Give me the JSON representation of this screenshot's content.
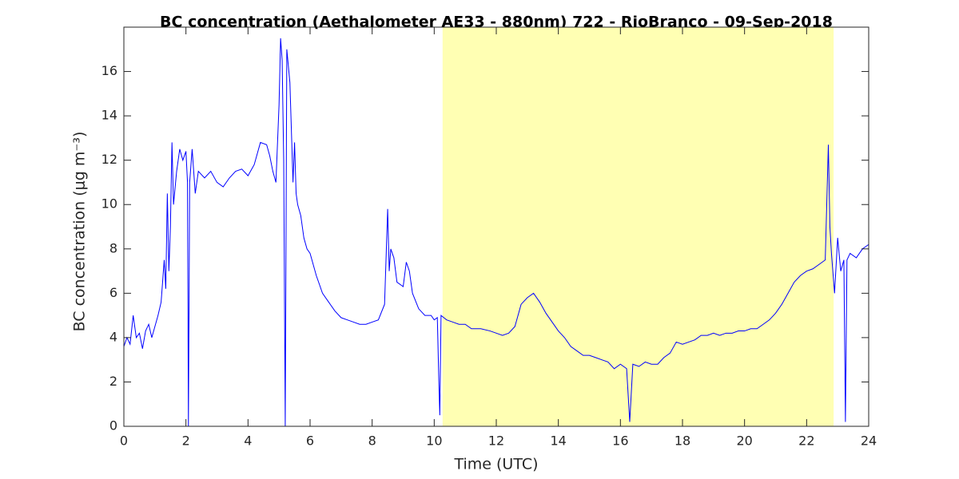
{
  "chart_data": {
    "type": "line",
    "title": "BC concentration (Aethalometer AE33 - 880nm) 722 - RioBranco - 09-Sep-2018",
    "xlabel": "Time (UTC)",
    "ylabel": "BC concentration (μg m⁻³)",
    "xlim": [
      0,
      24
    ],
    "xticks": [
      0,
      2,
      4,
      6,
      8,
      10,
      12,
      14,
      16,
      18,
      20,
      22,
      24
    ],
    "ylim": [
      0,
      18
    ],
    "yticks": [
      0,
      2,
      4,
      6,
      8,
      10,
      12,
      14,
      16
    ],
    "shaded_region": [
      10.27,
      22.87
    ],
    "shade_color": "#ffffb3",
    "series": [
      {
        "color": "#0000ff",
        "x": [
          0,
          0.1,
          0.2,
          0.3,
          0.4,
          0.5,
          0.6,
          0.7,
          0.8,
          0.9,
          1.0,
          1.1,
          1.2,
          1.3,
          1.35,
          1.4,
          1.45,
          1.5,
          1.55,
          1.6,
          1.7,
          1.8,
          1.9,
          2.0,
          2.05,
          2.08,
          2.12,
          2.2,
          2.3,
          2.4,
          2.6,
          2.8,
          3.0,
          3.2,
          3.4,
          3.6,
          3.8,
          4.0,
          4.2,
          4.4,
          4.6,
          4.7,
          4.8,
          4.9,
          5.0,
          5.05,
          5.1,
          5.15,
          5.2,
          5.25,
          5.35,
          5.45,
          5.5,
          5.55,
          5.6,
          5.7,
          5.8,
          5.9,
          6.0,
          6.2,
          6.4,
          6.6,
          6.8,
          7.0,
          7.2,
          7.4,
          7.6,
          7.8,
          8.0,
          8.2,
          8.4,
          8.5,
          8.55,
          8.6,
          8.7,
          8.8,
          9.0,
          9.1,
          9.2,
          9.3,
          9.5,
          9.7,
          9.9,
          10.0,
          10.1,
          10.15,
          10.18,
          10.22,
          10.4,
          10.6,
          10.8,
          11.0,
          11.2,
          11.5,
          11.8,
          12.0,
          12.2,
          12.4,
          12.6,
          12.8,
          13.0,
          13.2,
          13.4,
          13.6,
          13.8,
          14.0,
          14.2,
          14.4,
          14.6,
          14.8,
          15.0,
          15.2,
          15.4,
          15.6,
          15.8,
          16.0,
          16.2,
          16.3,
          16.4,
          16.6,
          16.8,
          17.0,
          17.2,
          17.4,
          17.6,
          17.8,
          18.0,
          18.2,
          18.4,
          18.6,
          18.8,
          19.0,
          19.2,
          19.4,
          19.6,
          19.8,
          20.0,
          20.2,
          20.4,
          20.6,
          20.8,
          21.0,
          21.2,
          21.4,
          21.6,
          21.8,
          22.0,
          22.2,
          22.4,
          22.6,
          22.7,
          22.75,
          22.8,
          22.9,
          23.0,
          23.1,
          23.2,
          23.25,
          23.3,
          23.4,
          23.6,
          23.8,
          24.0
        ],
        "values": [
          3.6,
          4.0,
          3.7,
          5.0,
          4.0,
          4.2,
          3.5,
          4.3,
          4.6,
          4.0,
          4.5,
          5.0,
          5.6,
          7.5,
          6.2,
          10.5,
          7.0,
          9.0,
          12.8,
          10.0,
          11.5,
          12.5,
          12.0,
          12.4,
          11.0,
          0.0,
          11.0,
          12.5,
          10.5,
          11.5,
          11.2,
          11.5,
          11.0,
          10.8,
          11.2,
          11.5,
          11.6,
          11.3,
          11.8,
          12.8,
          12.7,
          12.2,
          11.5,
          11.0,
          14.5,
          17.5,
          16.5,
          12.0,
          0.0,
          17.0,
          15.5,
          11.0,
          12.8,
          10.5,
          10.0,
          9.5,
          8.5,
          8.0,
          7.8,
          6.8,
          6.0,
          5.6,
          5.2,
          4.9,
          4.8,
          4.7,
          4.6,
          4.6,
          4.7,
          4.8,
          5.5,
          9.8,
          7.0,
          8.0,
          7.6,
          6.5,
          6.3,
          7.4,
          7.0,
          6.0,
          5.3,
          5.0,
          5.0,
          4.8,
          4.9,
          2.0,
          0.5,
          5.0,
          4.8,
          4.7,
          4.6,
          4.6,
          4.4,
          4.4,
          4.3,
          4.2,
          4.1,
          4.2,
          4.5,
          5.5,
          5.8,
          6.0,
          5.6,
          5.1,
          4.7,
          4.3,
          4.0,
          3.6,
          3.4,
          3.2,
          3.2,
          3.1,
          3.0,
          2.9,
          2.6,
          2.8,
          2.6,
          0.2,
          2.8,
          2.7,
          2.9,
          2.8,
          2.8,
          3.1,
          3.3,
          3.8,
          3.7,
          3.8,
          3.9,
          4.1,
          4.1,
          4.2,
          4.1,
          4.2,
          4.2,
          4.3,
          4.3,
          4.4,
          4.4,
          4.6,
          4.8,
          5.1,
          5.5,
          6.0,
          6.5,
          6.8,
          7.0,
          7.1,
          7.3,
          7.5,
          12.7,
          9.0,
          7.8,
          6.0,
          8.5,
          7.0,
          7.5,
          0.2,
          7.5,
          7.8,
          7.6,
          8.0,
          8.2
        ]
      }
    ]
  }
}
